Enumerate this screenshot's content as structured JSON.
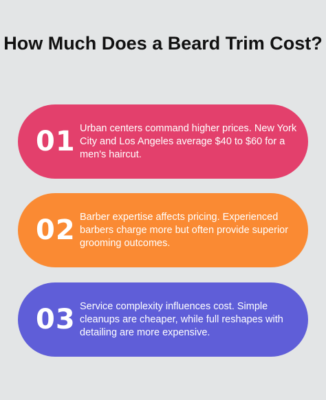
{
  "title": "How Much Does a Beard Trim Cost?",
  "items": [
    {
      "number": "01",
      "text": "Urban centers command higher prices. New York City and Los Angeles average $40 to $60 for a men's haircut.",
      "color": "#e3406c"
    },
    {
      "number": "02",
      "text": "Barber expertise affects pricing. Experienced barbers charge more but often provide superior grooming outcomes.",
      "color": "#fa8a33"
    },
    {
      "number": "03",
      "text": "Service complexity influences cost. Simple cleanups are cheaper, while full reshapes with detailing are more expensive.",
      "color": "#5f5ed8"
    }
  ],
  "background_color": "#e3e5e6"
}
